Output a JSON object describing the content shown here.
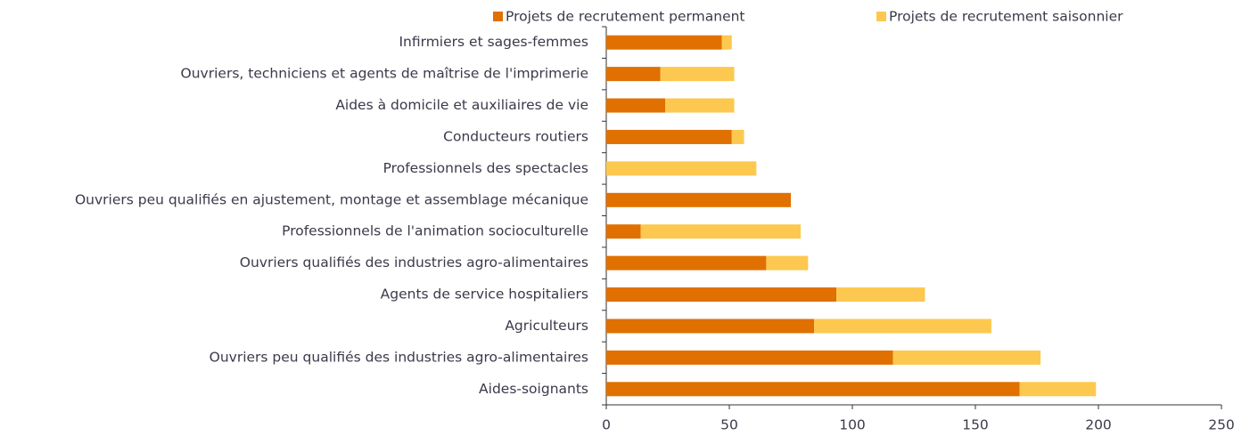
{
  "chart_data": {
    "type": "bar",
    "orientation": "horizontal",
    "stacked": true,
    "categories": [
      "Infirmiers et sages-femmes",
      "Ouvriers, techniciens et agents de maîtrise de l'imprimerie",
      "Aides à domicile et auxiliaires de vie",
      "Conducteurs routiers",
      "Professionnels des spectacles",
      "Ouvriers peu qualifiés en ajustement, montage et assemblage mécanique",
      "Professionnels de l'animation socioculturelle",
      "Ouvriers qualifiés des industries agro-alimentaires",
      "Agents de service hospitaliers",
      "Agriculteurs",
      "Ouvriers peu qualifiés des industries agro-alimentaires",
      "Aides-soignants"
    ],
    "series": [
      {
        "name": "Projets de recrutement permanent",
        "color": "#e07000",
        "values": [
          47,
          22,
          24,
          51,
          0,
          75,
          14,
          65,
          93.5,
          84.5,
          116.5,
          168
        ]
      },
      {
        "name": "Projets de recrutement saisonnier",
        "color": "#fdc84f",
        "values": [
          4,
          30,
          28,
          5,
          61,
          0,
          65,
          17,
          36,
          72,
          60,
          31
        ]
      }
    ],
    "xlim": [
      0,
      250
    ],
    "xticks": [
      0,
      50,
      100,
      150,
      200,
      250
    ],
    "legend": "top"
  }
}
